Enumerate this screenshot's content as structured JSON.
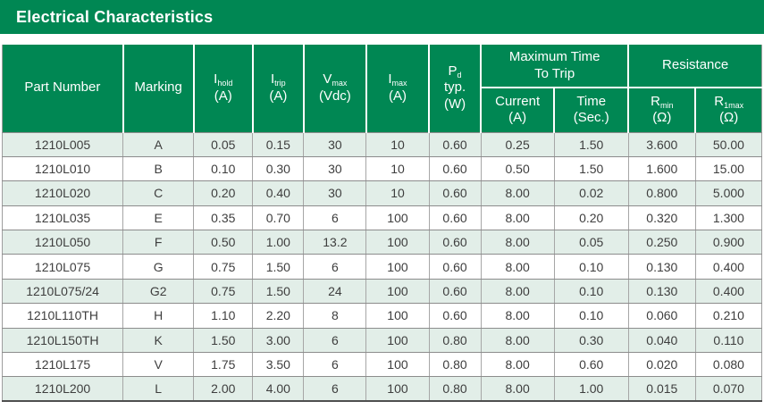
{
  "title_bar": {
    "label": "Electrical Characteristics"
  },
  "colors": {
    "green": "#008753",
    "row_stripe": "#e2eee8",
    "text": "#3e3e3e",
    "header_text": "#ffffff"
  },
  "table": {
    "header": {
      "part_number": "Part Number",
      "marking": "Marking",
      "i_hold": {
        "sym": "I",
        "sub": "hold",
        "unit": "(A)"
      },
      "i_trip": {
        "sym": "I",
        "sub": "trip",
        "unit": "(A)"
      },
      "v_max": {
        "sym": "V",
        "sub": "max",
        "unit": "(Vdc)"
      },
      "i_max": {
        "sym": "I",
        "sub": "max",
        "unit": "(A)"
      },
      "p_d": {
        "sym": "P",
        "sub": "d",
        "line2": "typ.",
        "unit": "(W)"
      },
      "group_trip": {
        "line1": "Maximum Time",
        "line2": "To Trip"
      },
      "current": {
        "line1": "Current",
        "unit": "(A)"
      },
      "time": {
        "line1": "Time",
        "unit": "(Sec.)"
      },
      "group_resistance": "Resistance",
      "r_min": {
        "sym": "R",
        "sub": "min",
        "unit": "(Ω)"
      },
      "r_1max": {
        "sym": "R",
        "sub": "1max",
        "unit": "(Ω)"
      }
    },
    "rows": [
      [
        "1210L005",
        "A",
        "0.05",
        "0.15",
        "30",
        "10",
        "0.60",
        "0.25",
        "1.50",
        "3.600",
        "50.00"
      ],
      [
        "1210L010",
        "B",
        "0.10",
        "0.30",
        "30",
        "10",
        "0.60",
        "0.50",
        "1.50",
        "1.600",
        "15.00"
      ],
      [
        "1210L020",
        "C",
        "0.20",
        "0.40",
        "30",
        "10",
        "0.60",
        "8.00",
        "0.02",
        "0.800",
        "5.000"
      ],
      [
        "1210L035",
        "E",
        "0.35",
        "0.70",
        "6",
        "100",
        "0.60",
        "8.00",
        "0.20",
        "0.320",
        "1.300"
      ],
      [
        "1210L050",
        "F",
        "0.50",
        "1.00",
        "13.2",
        "100",
        "0.60",
        "8.00",
        "0.05",
        "0.250",
        "0.900"
      ],
      [
        "1210L075",
        "G",
        "0.75",
        "1.50",
        "6",
        "100",
        "0.60",
        "8.00",
        "0.10",
        "0.130",
        "0.400"
      ],
      [
        "1210L075/24",
        "G2",
        "0.75",
        "1.50",
        "24",
        "100",
        "0.60",
        "8.00",
        "0.10",
        "0.130",
        "0.400"
      ],
      [
        "1210L110TH",
        "H",
        "1.10",
        "2.20",
        "8",
        "100",
        "0.60",
        "8.00",
        "0.10",
        "0.060",
        "0.210"
      ],
      [
        "1210L150TH",
        "K",
        "1.50",
        "3.00",
        "6",
        "100",
        "0.80",
        "8.00",
        "0.30",
        "0.040",
        "0.110"
      ],
      [
        "1210L175",
        "V",
        "1.75",
        "3.50",
        "6",
        "100",
        "0.80",
        "8.00",
        "0.60",
        "0.020",
        "0.080"
      ],
      [
        "1210L200",
        "L",
        "2.00",
        "4.00",
        "6",
        "100",
        "0.80",
        "8.00",
        "1.00",
        "0.015",
        "0.070"
      ]
    ]
  }
}
